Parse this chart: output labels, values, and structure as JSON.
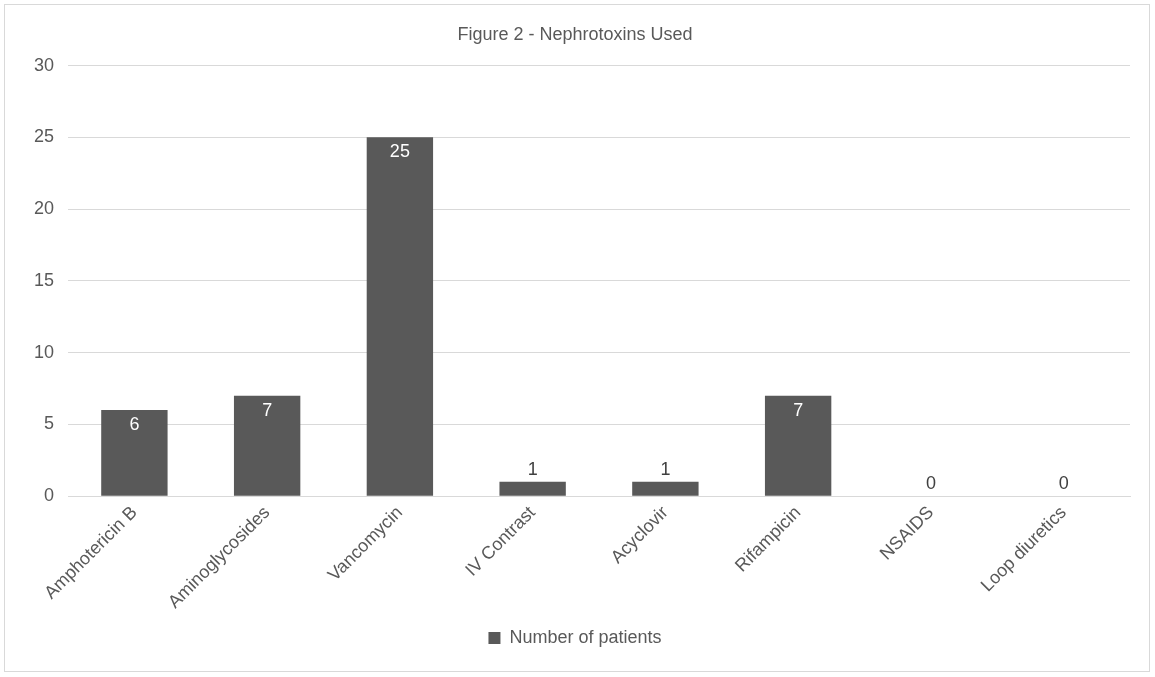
{
  "chart_data": {
    "type": "bar",
    "title": "Figure 2 - Nephrotoxins Used",
    "categories": [
      "Amphotericin B",
      "Aminoglycosides",
      "Vancomycin",
      "IV Contrast",
      "Acyclovir",
      "Rifampicin",
      "NSAIDS",
      "Loop diuretics"
    ],
    "series": [
      {
        "name": "Number of patients",
        "color": "#595959",
        "values": [
          6,
          7,
          25,
          1,
          1,
          7,
          0,
          0
        ]
      }
    ],
    "ylim": [
      0,
      30
    ],
    "yticks": [
      0,
      5,
      10,
      15,
      20,
      25,
      30
    ],
    "grid": "y",
    "legend": "bottom",
    "data_labels": true
  }
}
